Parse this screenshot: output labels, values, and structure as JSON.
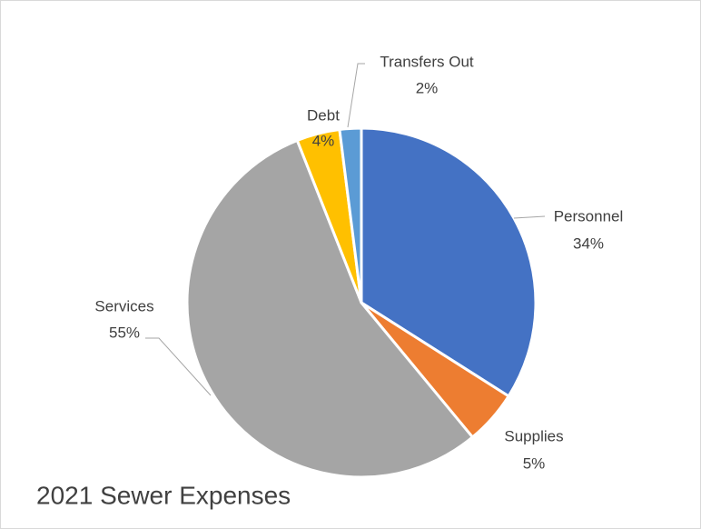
{
  "chart_data": {
    "type": "pie",
    "title": "2021 Sewer Expenses",
    "categories": [
      "Personnel",
      "Supplies",
      "Services",
      "Debt",
      "Transfers Out"
    ],
    "values": [
      34,
      5,
      55,
      4,
      2
    ],
    "value_labels": [
      "34%",
      "5%",
      "55%",
      "4%",
      "2%"
    ],
    "colors": [
      "#4472c4",
      "#ed7d31",
      "#a5a5a5",
      "#ffc000",
      "#5b9bd5"
    ]
  }
}
